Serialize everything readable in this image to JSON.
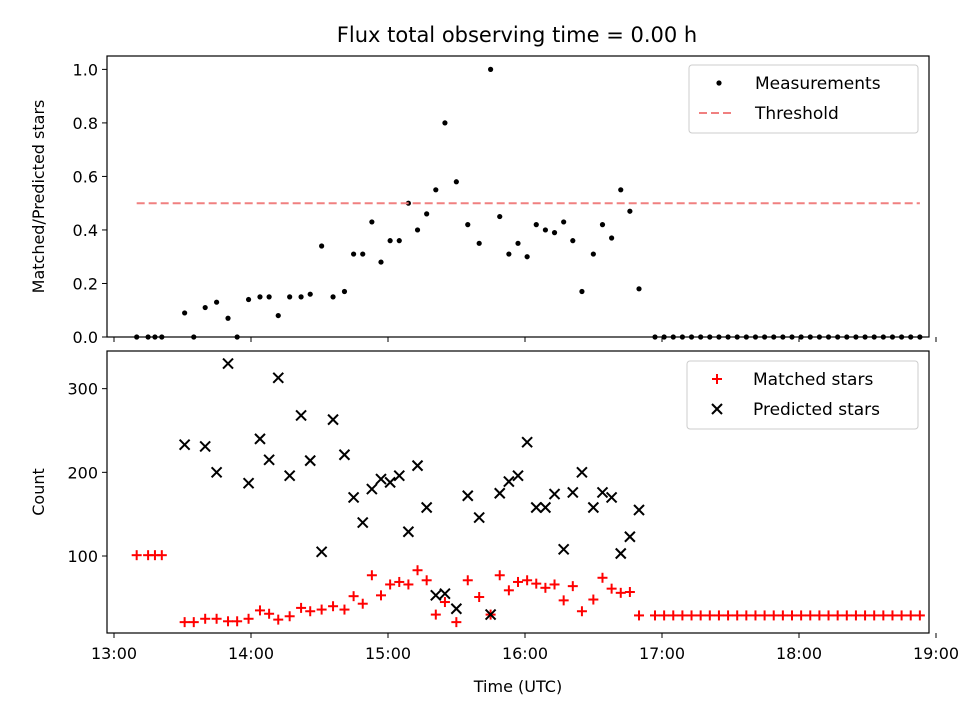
{
  "chart_data": [
    {
      "type": "scatter",
      "title": "Flux total observing time = 0.00 h",
      "xlabel": "",
      "ylabel": "Matched/Predicted stars",
      "xlim": [
        "13:00",
        "19:00"
      ],
      "ylim": [
        0,
        1.05
      ],
      "yticks": [
        "0.0",
        "0.2",
        "0.4",
        "0.6",
        "0.8",
        "1.0"
      ],
      "legend_position": "top-right",
      "series": [
        {
          "name": "Measurements",
          "marker": "dot",
          "color": "#000000",
          "points": [
            [
              "13:13",
              0.0
            ],
            [
              "13:18",
              0.0
            ],
            [
              "13:21",
              0.0
            ],
            [
              "13:24",
              0.0
            ],
            [
              "13:34",
              0.09
            ],
            [
              "13:38",
              0.0
            ],
            [
              "13:43",
              0.11
            ],
            [
              "13:48",
              0.13
            ],
            [
              "13:53",
              0.07
            ],
            [
              "13:57",
              0.0
            ],
            [
              "14:02",
              0.14
            ],
            [
              "14:07",
              0.15
            ],
            [
              "14:11",
              0.15
            ],
            [
              "14:15",
              0.08
            ],
            [
              "14:20",
              0.15
            ],
            [
              "14:25",
              0.15
            ],
            [
              "14:29",
              0.16
            ],
            [
              "14:34",
              0.34
            ],
            [
              "14:39",
              0.15
            ],
            [
              "14:44",
              0.17
            ],
            [
              "14:48",
              0.31
            ],
            [
              "14:52",
              0.31
            ],
            [
              "14:56",
              0.43
            ],
            [
              "15:00",
              0.28
            ],
            [
              "15:04",
              0.36
            ],
            [
              "15:08",
              0.36
            ],
            [
              "15:12",
              0.5
            ],
            [
              "15:16",
              0.4
            ],
            [
              "15:20",
              0.46
            ],
            [
              "15:24",
              0.55
            ],
            [
              "15:28",
              0.8
            ],
            [
              "15:33",
              0.58
            ],
            [
              "15:38",
              0.42
            ],
            [
              "15:43",
              0.35
            ],
            [
              "15:48",
              1.0
            ],
            [
              "15:52",
              0.45
            ],
            [
              "15:56",
              0.31
            ],
            [
              "16:00",
              0.35
            ],
            [
              "16:04",
              0.3
            ],
            [
              "16:08",
              0.42
            ],
            [
              "16:12",
              0.4
            ],
            [
              "16:16",
              0.39
            ],
            [
              "16:20",
              0.43
            ],
            [
              "16:24",
              0.36
            ],
            [
              "16:28",
              0.17
            ],
            [
              "16:33",
              0.31
            ],
            [
              "16:37",
              0.42
            ],
            [
              "16:41",
              0.37
            ],
            [
              "16:45",
              0.55
            ],
            [
              "16:49",
              0.47
            ],
            [
              "16:53",
              0.18
            ],
            [
              "17:00",
              0.0
            ],
            [
              "17:04",
              0.0
            ],
            [
              "17:08",
              0.0
            ],
            [
              "17:12",
              0.0
            ],
            [
              "17:16",
              0.0
            ],
            [
              "17:20",
              0.0
            ],
            [
              "17:24",
              0.0
            ],
            [
              "17:28",
              0.0
            ],
            [
              "17:32",
              0.0
            ],
            [
              "17:36",
              0.0
            ],
            [
              "17:40",
              0.0
            ],
            [
              "17:44",
              0.0
            ],
            [
              "17:48",
              0.0
            ],
            [
              "17:52",
              0.0
            ],
            [
              "17:56",
              0.0
            ],
            [
              "18:00",
              0.0
            ],
            [
              "18:04",
              0.0
            ],
            [
              "18:08",
              0.0
            ],
            [
              "18:12",
              0.0
            ],
            [
              "18:16",
              0.0
            ],
            [
              "18:20",
              0.0
            ],
            [
              "18:24",
              0.0
            ],
            [
              "18:28",
              0.0
            ],
            [
              "18:32",
              0.0
            ],
            [
              "18:36",
              0.0
            ],
            [
              "18:40",
              0.0
            ],
            [
              "18:44",
              0.0
            ],
            [
              "18:48",
              0.0
            ],
            [
              "18:52",
              0.0
            ],
            [
              "18:56",
              0.0
            ]
          ]
        },
        {
          "name": "Threshold",
          "style": "dashed",
          "color": "#f08080",
          "points": [
            [
              "13:13",
              0.5
            ],
            [
              "18:56",
              0.5
            ]
          ]
        }
      ]
    },
    {
      "type": "scatter",
      "title": "",
      "xlabel": "Time (UTC)",
      "ylabel": "Count",
      "xlim": [
        "13:00",
        "19:00"
      ],
      "ylim": [
        8,
        345
      ],
      "yticks": [
        "100",
        "200",
        "300"
      ],
      "xticks": [
        "13:00",
        "14:00",
        "15:00",
        "16:00",
        "17:00",
        "18:00",
        "19:00"
      ],
      "legend_position": "top-right",
      "series": [
        {
          "name": "Matched stars",
          "marker": "plus",
          "color": "#ff0000",
          "points": [
            [
              "13:13",
              101
            ],
            [
              "13:18",
              101
            ],
            [
              "13:21",
              101
            ],
            [
              "13:24",
              101
            ],
            [
              "13:34",
              21
            ],
            [
              "13:38",
              21
            ],
            [
              "13:43",
              25
            ],
            [
              "13:48",
              25
            ],
            [
              "13:53",
              22
            ],
            [
              "13:57",
              22
            ],
            [
              "14:02",
              25
            ],
            [
              "14:07",
              35
            ],
            [
              "14:11",
              31
            ],
            [
              "14:15",
              24
            ],
            [
              "14:20",
              28
            ],
            [
              "14:25",
              38
            ],
            [
              "14:29",
              34
            ],
            [
              "14:34",
              36
            ],
            [
              "14:39",
              40
            ],
            [
              "14:44",
              36
            ],
            [
              "14:48",
              52
            ],
            [
              "14:52",
              43
            ],
            [
              "14:56",
              77
            ],
            [
              "15:00",
              53
            ],
            [
              "15:04",
              66
            ],
            [
              "15:08",
              69
            ],
            [
              "15:12",
              66
            ],
            [
              "15:16",
              83
            ],
            [
              "15:20",
              71
            ],
            [
              "15:24",
              30
            ],
            [
              "15:28",
              45
            ],
            [
              "15:33",
              21
            ],
            [
              "15:38",
              71
            ],
            [
              "15:43",
              51
            ],
            [
              "15:48",
              30
            ],
            [
              "15:52",
              77
            ],
            [
              "15:56",
              59
            ],
            [
              "16:00",
              69
            ],
            [
              "16:04",
              71
            ],
            [
              "16:08",
              67
            ],
            [
              "16:12",
              62
            ],
            [
              "16:16",
              66
            ],
            [
              "16:20",
              47
            ],
            [
              "16:24",
              64
            ],
            [
              "16:28",
              34
            ],
            [
              "16:33",
              48
            ],
            [
              "16:37",
              74
            ],
            [
              "16:41",
              61
            ],
            [
              "16:45",
              56
            ],
            [
              "16:49",
              57
            ],
            [
              "16:53",
              29
            ],
            [
              "17:00",
              29
            ],
            [
              "17:04",
              29
            ],
            [
              "17:08",
              29
            ],
            [
              "17:12",
              29
            ],
            [
              "17:16",
              29
            ],
            [
              "17:20",
              29
            ],
            [
              "17:24",
              29
            ],
            [
              "17:28",
              29
            ],
            [
              "17:32",
              29
            ],
            [
              "17:36",
              29
            ],
            [
              "17:40",
              29
            ],
            [
              "17:44",
              29
            ],
            [
              "17:48",
              29
            ],
            [
              "17:52",
              29
            ],
            [
              "17:56",
              29
            ],
            [
              "18:00",
              29
            ],
            [
              "18:04",
              29
            ],
            [
              "18:08",
              29
            ],
            [
              "18:12",
              29
            ],
            [
              "18:16",
              29
            ],
            [
              "18:20",
              29
            ],
            [
              "18:24",
              29
            ],
            [
              "18:28",
              29
            ],
            [
              "18:32",
              29
            ],
            [
              "18:36",
              29
            ],
            [
              "18:40",
              29
            ],
            [
              "18:44",
              29
            ],
            [
              "18:48",
              29
            ],
            [
              "18:52",
              29
            ],
            [
              "18:56",
              29
            ]
          ]
        },
        {
          "name": "Predicted stars",
          "marker": "x",
          "color": "#000000",
          "points": [
            [
              "13:34",
              233
            ],
            [
              "13:43",
              231
            ],
            [
              "13:48",
              200
            ],
            [
              "13:53",
              330
            ],
            [
              "14:02",
              187
            ],
            [
              "14:07",
              240
            ],
            [
              "14:11",
              215
            ],
            [
              "14:15",
              313
            ],
            [
              "14:20",
              196
            ],
            [
              "14:25",
              268
            ],
            [
              "14:29",
              214
            ],
            [
              "14:34",
              105
            ],
            [
              "14:39",
              263
            ],
            [
              "14:44",
              221
            ],
            [
              "14:48",
              170
            ],
            [
              "14:52",
              140
            ],
            [
              "14:56",
              180
            ],
            [
              "15:00",
              192
            ],
            [
              "15:04",
              188
            ],
            [
              "15:08",
              196
            ],
            [
              "15:12",
              129
            ],
            [
              "15:16",
              208
            ],
            [
              "15:20",
              158
            ],
            [
              "15:24",
              53
            ],
            [
              "15:28",
              55
            ],
            [
              "15:33",
              37
            ],
            [
              "15:38",
              172
            ],
            [
              "15:43",
              146
            ],
            [
              "15:48",
              30
            ],
            [
              "15:52",
              175
            ],
            [
              "15:56",
              189
            ],
            [
              "16:00",
              196
            ],
            [
              "16:04",
              236
            ],
            [
              "16:08",
              158
            ],
            [
              "16:12",
              158
            ],
            [
              "16:16",
              174
            ],
            [
              "16:20",
              108
            ],
            [
              "16:24",
              176
            ],
            [
              "16:28",
              200
            ],
            [
              "16:33",
              158
            ],
            [
              "16:37",
              176
            ],
            [
              "16:41",
              170
            ],
            [
              "16:45",
              103
            ],
            [
              "16:49",
              123
            ],
            [
              "16:53",
              155
            ]
          ]
        }
      ]
    }
  ]
}
